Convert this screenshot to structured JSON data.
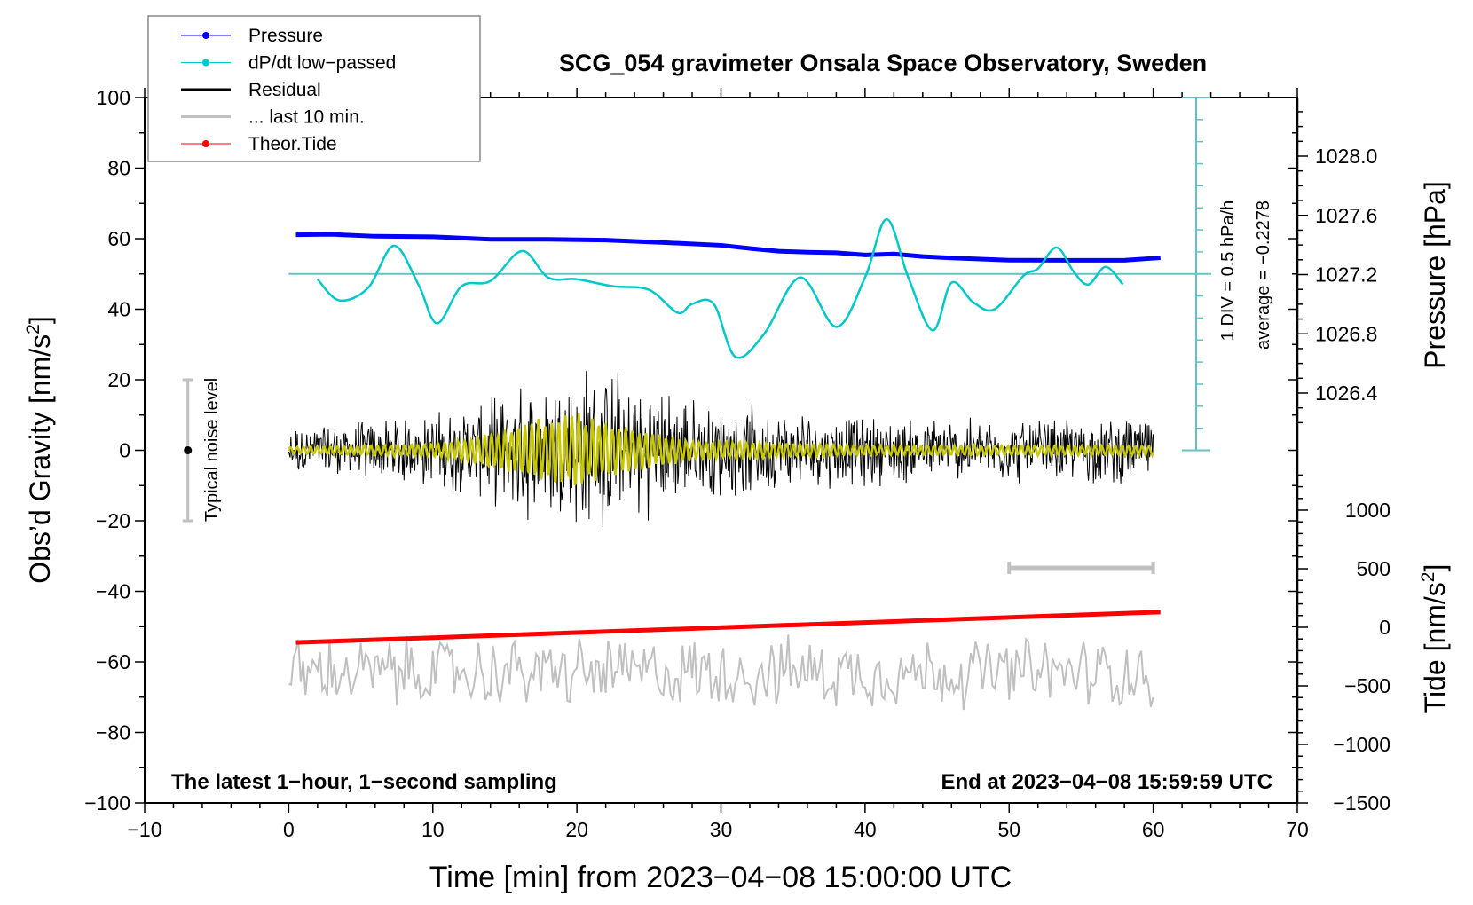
{
  "chart_data": {
    "type": "line",
    "title": "SCG_054 gravimeter Onsala Space Observatory, Sweden",
    "xlabel": "Time [min] from 2023−04−08 15:00:00 UTC",
    "ylabel": "Obs’d Gravity [nm/s²]",
    "ylabel_main": "Obs’d Gravity [nm/s",
    "ylabel_sup": "2",
    "ylabel_end": "]",
    "y2label_pressure": "Pressure [hPa]",
    "y2label_tide_main": "Tide [nm/s",
    "y2label_tide_sup": "2",
    "y2label_tide_end": "]",
    "xlim": [
      -10,
      70
    ],
    "ylim": [
      -100,
      100
    ],
    "xticks": [
      "−10",
      "0",
      "10",
      "20",
      "30",
      "40",
      "50",
      "60",
      "70"
    ],
    "xtick_values": [
      -10,
      0,
      10,
      20,
      30,
      40,
      50,
      60,
      70
    ],
    "yticks": [
      "100",
      "80",
      "60",
      "40",
      "20",
      "0",
      "−20",
      "−40",
      "−60",
      "−80",
      "−100"
    ],
    "ytick_values": [
      100,
      80,
      60,
      40,
      20,
      0,
      -20,
      -40,
      -60,
      -80,
      -100
    ],
    "pressure_axis": {
      "ticks": [
        "1028.0",
        "1027.6",
        "1027.2",
        "1026.8",
        "1026.4"
      ],
      "tick_values": [
        1028.0,
        1027.6,
        1027.2,
        1026.8,
        1026.4
      ]
    },
    "tide_axis": {
      "ticks": [
        "1000",
        "500",
        "0",
        "−500",
        "−1000",
        "−1500"
      ],
      "tick_values": [
        1000,
        500,
        0,
        -500,
        -1000,
        -1500
      ]
    },
    "legend": {
      "position": "top-left",
      "entries": [
        {
          "label": "Pressure",
          "color": "#0000ff",
          "marker": "dot"
        },
        {
          "label": "dP/dt low−passed",
          "color": "#00c8c8",
          "marker": "dot"
        },
        {
          "label": "Residual",
          "color": "#000000",
          "marker": "line"
        },
        {
          "label": "... last 10 min.",
          "color": "#c0c0c0",
          "marker": "line"
        },
        {
          "label": "Theor.Tide",
          "color": "#ff0000",
          "marker": "dot"
        }
      ]
    },
    "annotations": {
      "noise_label": "Typical noise level",
      "noise_range": [
        -20,
        20
      ],
      "dpdt_scale": "1 DIV = 0.5 hPa/h",
      "dpdt_average": "average = −0.2278",
      "bottom_left": "The latest 1−hour, 1−second sampling",
      "bottom_right": "End at 2023−04−08 15:59:59 UTC",
      "last10_bar_range_min": [
        50,
        60
      ]
    },
    "series": [
      {
        "name": "Pressure",
        "axis": "pressure_hPa",
        "color": "#0000ff",
        "x": [
          0.5,
          3,
          6,
          10,
          14,
          18,
          22,
          26,
          30,
          32,
          34,
          36,
          38,
          40,
          42,
          44,
          46,
          50,
          54,
          58,
          60.5
        ],
        "values": [
          1027.47,
          1027.47,
          1027.46,
          1027.46,
          1027.44,
          1027.44,
          1027.43,
          1027.42,
          1027.4,
          1027.38,
          1027.36,
          1027.35,
          1027.35,
          1027.33,
          1027.34,
          1027.32,
          1027.31,
          1027.3,
          1027.3,
          1027.3,
          1027.31
        ]
      },
      {
        "name": "dP/dt low-passed",
        "axis": "gravity_offset_display",
        "color": "#00c8c8",
        "zero_line_y": 50,
        "x": [
          2,
          3.5,
          5.5,
          7.3,
          9,
          10.3,
          12,
          14,
          16.2,
          18,
          20,
          22.5,
          25,
          27,
          28,
          29.5,
          31,
          33,
          35.5,
          38,
          40,
          41.5,
          43,
          44.7,
          46,
          47.5,
          49,
          51,
          52,
          53.3,
          54.5,
          55.5,
          56.7,
          57.9
        ],
        "values": [
          48.5,
          42.5,
          46,
          58,
          47,
          36,
          46.5,
          48,
          56.5,
          49,
          48.5,
          46.5,
          45.5,
          39,
          41.5,
          41.5,
          26.5,
          33,
          49,
          35,
          49,
          65.5,
          49,
          34,
          47.5,
          42,
          40,
          49.5,
          51.5,
          57.5,
          50.5,
          47,
          52,
          47
        ]
      },
      {
        "name": "Residual",
        "axis": "gravity",
        "color": "#000000",
        "x_range": [
          0,
          60
        ],
        "envelope": [
          {
            "x": 0,
            "amp": 8
          },
          {
            "x": 8,
            "amp": 10
          },
          {
            "x": 13,
            "amp": 14
          },
          {
            "x": 16,
            "amp": 20
          },
          {
            "x": 20,
            "amp": 28
          },
          {
            "x": 23,
            "amp": 24
          },
          {
            "x": 28,
            "amp": 16
          },
          {
            "x": 35,
            "amp": 12
          },
          {
            "x": 45,
            "amp": 10
          },
          {
            "x": 55,
            "amp": 10
          },
          {
            "x": 60,
            "amp": 11
          }
        ]
      },
      {
        "name": "Residual low-passed",
        "axis": "gravity",
        "color": "#c8c800",
        "x_range": [
          0,
          60
        ],
        "envelope": [
          {
            "x": 0,
            "amp": 1
          },
          {
            "x": 10,
            "amp": 2
          },
          {
            "x": 13,
            "amp": 4
          },
          {
            "x": 17,
            "amp": 9
          },
          {
            "x": 20,
            "amp": 11
          },
          {
            "x": 23,
            "amp": 7
          },
          {
            "x": 28,
            "amp": 3
          },
          {
            "x": 40,
            "amp": 1.5
          },
          {
            "x": 60,
            "amp": 1.5
          }
        ]
      },
      {
        "name": "... last 10 min.",
        "axis": "gravity_offset_display",
        "color": "#c0c0c0",
        "baseline": -63,
        "x_range": [
          0,
          60
        ],
        "amplitude": 9
      },
      {
        "name": "Theor.Tide",
        "axis": "tide_nm_s2",
        "color": "#ff0000",
        "x": [
          0.5,
          60.5
        ],
        "values": [
          -130,
          130
        ]
      }
    ]
  }
}
